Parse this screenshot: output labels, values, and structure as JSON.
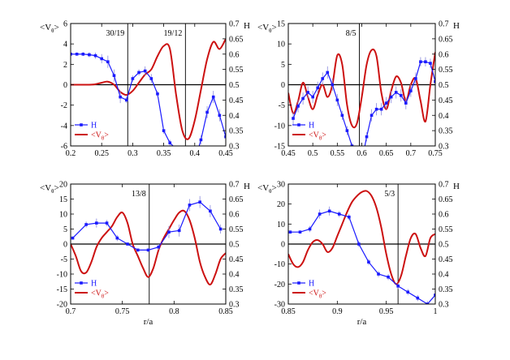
{
  "colors": {
    "H": "#1a1aff",
    "V": "#cc1111",
    "error_bar": "#8888dd",
    "axis": "#000000"
  },
  "legend": {
    "h_label": "H",
    "v_label": "<V",
    "v_sub": "θ",
    "v_close": ">",
    "placement": "bottom-left"
  },
  "chart_data": [
    {
      "type": "line",
      "xlabel": "",
      "ylabel_left": {
        "main": "<V",
        "sub": "θ",
        "close": ">"
      },
      "ylabel_right": "H",
      "xlim": [
        0.2,
        0.45
      ],
      "ylim_left": [
        -6,
        6
      ],
      "ylim_right": [
        0.3,
        0.7
      ],
      "xticks": [
        "0.2",
        "0.25",
        "0.3",
        "0.35",
        "0.4",
        "0.45"
      ],
      "yticks_left": [
        "-6",
        "-4",
        "-2",
        "0",
        "2",
        "4",
        "6"
      ],
      "yticks_right": [
        "0.3",
        "0.35",
        "0.4",
        "0.45",
        "0.5",
        "0.55",
        "0.6",
        "0.65",
        "0.7"
      ],
      "resonances": [
        {
          "label": "30/19",
          "x": 0.292
        },
        {
          "label": "19/12",
          "x": 0.385
        }
      ],
      "series": [
        {
          "name": "H",
          "axis": "right",
          "x": [
            0.2,
            0.21,
            0.22,
            0.23,
            0.24,
            0.25,
            0.26,
            0.27,
            0.28,
            0.29,
            0.3,
            0.31,
            0.32,
            0.33,
            0.34,
            0.35,
            0.36,
            0.37,
            0.38,
            0.39,
            0.4,
            0.41,
            0.42,
            0.43,
            0.44,
            0.45
          ],
          "y": [
            0.6,
            0.6,
            0.6,
            0.598,
            0.595,
            0.585,
            0.575,
            0.53,
            0.46,
            0.45,
            0.52,
            0.54,
            0.545,
            0.52,
            0.47,
            0.35,
            0.31,
            0.29,
            0.28,
            0.25,
            0.25,
            0.32,
            0.41,
            0.46,
            0.4,
            0.33
          ],
          "err": [
            0.005,
            0.005,
            0.006,
            0.008,
            0.01,
            0.015,
            0.02,
            0.02,
            0.02,
            0.01,
            0.01,
            0.01,
            0.015,
            0.015,
            0.01,
            0.01,
            0.01,
            0.01,
            0.01,
            0.01,
            0.01,
            0.015,
            0.02,
            0.02,
            0.02,
            0.02
          ]
        },
        {
          "name": "<Vθ>",
          "axis": "left",
          "x": [
            0.2,
            0.21,
            0.22,
            0.23,
            0.24,
            0.25,
            0.26,
            0.27,
            0.28,
            0.29,
            0.3,
            0.31,
            0.32,
            0.33,
            0.34,
            0.35,
            0.36,
            0.37,
            0.38,
            0.39,
            0.4,
            0.41,
            0.42,
            0.43,
            0.44,
            0.45
          ],
          "y": [
            0,
            0,
            0,
            0,
            0.05,
            0.2,
            0.3,
            0,
            -0.7,
            -1.0,
            -0.6,
            0.2,
            1.0,
            1.5,
            2.8,
            3.8,
            3.5,
            -1.0,
            -4.5,
            -5.3,
            -3.5,
            -0.5,
            2.5,
            4.2,
            3.5,
            4.5
          ]
        }
      ]
    },
    {
      "type": "line",
      "xlabel": "",
      "ylabel_left": {
        "main": "<V",
        "sub": "θ",
        "close": ">"
      },
      "ylabel_right": "H",
      "xlim": [
        0.45,
        0.75
      ],
      "ylim_left": [
        -15,
        15
      ],
      "ylim_right": [
        0.3,
        0.7
      ],
      "xticks": [
        "0.45",
        "0.5",
        "0.55",
        "0.6",
        "0.65",
        "0.7",
        "0.75"
      ],
      "yticks_left": [
        "-15",
        "-10",
        "-5",
        "0",
        "5",
        "10",
        "15"
      ],
      "yticks_right": [
        "0.3",
        "0.35",
        "0.4",
        "0.45",
        "0.5",
        "0.55",
        "0.6",
        "0.65",
        "0.7"
      ],
      "resonances": [
        {
          "label": "8/5",
          "x": 0.595
        }
      ],
      "series": [
        {
          "name": "H",
          "axis": "right",
          "x": [
            0.46,
            0.47,
            0.48,
            0.49,
            0.5,
            0.51,
            0.52,
            0.53,
            0.54,
            0.55,
            0.56,
            0.57,
            0.58,
            0.59,
            0.6,
            0.61,
            0.62,
            0.63,
            0.64,
            0.65,
            0.66,
            0.67,
            0.68,
            0.69,
            0.7,
            0.71,
            0.72,
            0.73,
            0.74,
            0.75
          ],
          "y": [
            0.39,
            0.43,
            0.455,
            0.475,
            0.46,
            0.49,
            0.52,
            0.54,
            0.5,
            0.45,
            0.4,
            0.35,
            0.3,
            0.25,
            0.25,
            0.33,
            0.4,
            0.42,
            0.42,
            0.44,
            0.46,
            0.475,
            0.465,
            0.44,
            0.48,
            0.52,
            0.575,
            0.575,
            0.57,
            0.51
          ],
          "err": [
            0.02,
            0.02,
            0.02,
            0.02,
            0.02,
            0.02,
            0.02,
            0.02,
            0.02,
            0.02,
            0.015,
            0.015,
            0.01,
            0.01,
            0.01,
            0.015,
            0.02,
            0.02,
            0.02,
            0.02,
            0.02,
            0.02,
            0.02,
            0.02,
            0.02,
            0.02,
            0.015,
            0.015,
            0.015,
            0.02
          ]
        },
        {
          "name": "<Vθ>",
          "axis": "left",
          "x": [
            0.45,
            0.46,
            0.47,
            0.48,
            0.49,
            0.5,
            0.51,
            0.52,
            0.53,
            0.54,
            0.55,
            0.56,
            0.57,
            0.58,
            0.59,
            0.6,
            0.61,
            0.62,
            0.63,
            0.64,
            0.65,
            0.66,
            0.67,
            0.68,
            0.69,
            0.7,
            0.71,
            0.72,
            0.73,
            0.74,
            0.75
          ],
          "y": [
            -2,
            -7,
            -4,
            0.5,
            -3,
            -6,
            -2.5,
            0,
            -3,
            0,
            7.2,
            5,
            -5,
            -10,
            -9.5,
            -3,
            5,
            8.5,
            7,
            -2,
            -6,
            -1.5,
            2,
            0.5,
            -4,
            0,
            1.5,
            -4,
            -9,
            0,
            8
          ]
        }
      ]
    },
    {
      "type": "line",
      "xlabel": "r/a",
      "ylabel_left": {
        "main": "<V",
        "sub": "θ",
        "close": ">"
      },
      "ylabel_right": "H",
      "xlim": [
        0.7,
        0.85
      ],
      "ylim_left": [
        -20,
        20
      ],
      "ylim_right": [
        0.3,
        0.7
      ],
      "xticks": [
        "0.7",
        "0.75",
        "0.8",
        "0.85"
      ],
      "yticks_left": [
        "-20",
        "-15",
        "-10",
        "-5",
        "0",
        "5",
        "10",
        "15",
        "20"
      ],
      "yticks_right": [
        "0.3",
        "0.35",
        "0.4",
        "0.45",
        "0.5",
        "0.55",
        "0.6",
        "0.65",
        "0.7"
      ],
      "resonances": [
        {
          "label": "13/8",
          "x": 0.776
        }
      ],
      "series": [
        {
          "name": "H",
          "axis": "right",
          "x": [
            0.702,
            0.715,
            0.725,
            0.735,
            0.745,
            0.755,
            0.765,
            0.775,
            0.785,
            0.795,
            0.805,
            0.815,
            0.825,
            0.835,
            0.845
          ],
          "y": [
            0.52,
            0.565,
            0.57,
            0.57,
            0.52,
            0.5,
            0.48,
            0.48,
            0.49,
            0.54,
            0.545,
            0.63,
            0.64,
            0.61,
            0.55
          ],
          "err": [
            0.005,
            0.01,
            0.015,
            0.01,
            0.01,
            0.005,
            0.005,
            0.005,
            0.01,
            0.02,
            0.02,
            0.02,
            0.02,
            0.02,
            0.015
          ]
        },
        {
          "name": "<Vθ>",
          "axis": "left",
          "x": [
            0.7,
            0.705,
            0.71,
            0.715,
            0.72,
            0.725,
            0.73,
            0.735,
            0.74,
            0.745,
            0.75,
            0.755,
            0.76,
            0.765,
            0.77,
            0.775,
            0.78,
            0.785,
            0.79,
            0.795,
            0.8,
            0.805,
            0.81,
            0.815,
            0.82,
            0.825,
            0.83,
            0.835,
            0.84,
            0.845,
            0.85
          ],
          "y": [
            0,
            -4,
            -9,
            -9.5,
            -6,
            -1,
            2,
            4,
            6,
            9,
            10.5,
            7,
            0,
            -4,
            -8,
            -11,
            -8,
            -2,
            2,
            5,
            8,
            10.5,
            11,
            8,
            2,
            -6,
            -11,
            -13.5,
            -10,
            -5,
            -3
          ]
        }
      ]
    },
    {
      "type": "line",
      "xlabel": "r/a",
      "ylabel_left": {
        "main": "<V",
        "sub": "θ",
        "close": ">"
      },
      "ylabel_right": "H",
      "xlim": [
        0.85,
        1.0
      ],
      "ylim_left": [
        -30,
        30
      ],
      "ylim_right": [
        0.3,
        0.7
      ],
      "xticks": [
        "0.85",
        "0.9",
        "0.95",
        "1"
      ],
      "yticks_left": [
        "-30",
        "-20",
        "-10",
        "0",
        "10",
        "20",
        "30"
      ],
      "yticks_right": [
        "0.3",
        "0.35",
        "0.4",
        "0.45",
        "0.5",
        "0.55",
        "0.6",
        "0.65",
        "0.7"
      ],
      "resonances": [
        {
          "label": "5/3",
          "x": 0.962
        }
      ],
      "series": [
        {
          "name": "H",
          "axis": "right",
          "x": [
            0.852,
            0.862,
            0.872,
            0.882,
            0.892,
            0.902,
            0.912,
            0.922,
            0.932,
            0.942,
            0.952,
            0.962,
            0.972,
            0.982,
            0.992,
            1.0
          ],
          "y": [
            0.54,
            0.54,
            0.55,
            0.6,
            0.61,
            0.6,
            0.59,
            0.5,
            0.44,
            0.4,
            0.39,
            0.36,
            0.34,
            0.32,
            0.3,
            0.33
          ],
          "err": [
            0.005,
            0.005,
            0.01,
            0.015,
            0.015,
            0.01,
            0.01,
            0.01,
            0.01,
            0.01,
            0.01,
            0.01,
            0.01,
            0.01,
            0.01,
            0.01
          ]
        },
        {
          "name": "<Vθ>",
          "axis": "left",
          "x": [
            0.85,
            0.855,
            0.86,
            0.865,
            0.87,
            0.875,
            0.88,
            0.885,
            0.89,
            0.895,
            0.9,
            0.905,
            0.91,
            0.915,
            0.92,
            0.925,
            0.93,
            0.935,
            0.94,
            0.945,
            0.95,
            0.955,
            0.96,
            0.965,
            0.97,
            0.975,
            0.98,
            0.985,
            0.99,
            0.995,
            1.0
          ],
          "y": [
            -5,
            -10,
            -11.5,
            -9,
            -3,
            1,
            2,
            0,
            -4,
            -2,
            4,
            10,
            16,
            21,
            24,
            26,
            26.5,
            24,
            18,
            8,
            -5,
            -15,
            -20,
            -16,
            -6,
            3,
            5,
            -2,
            -6,
            3,
            5
          ]
        }
      ]
    }
  ]
}
